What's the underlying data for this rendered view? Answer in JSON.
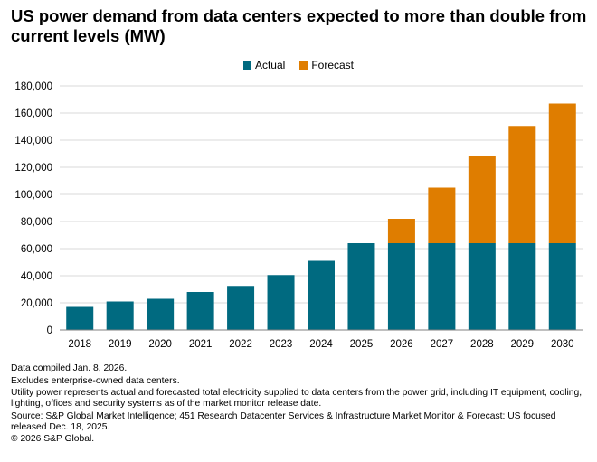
{
  "title": "US power demand from data centers expected to more than double from current levels (MW)",
  "colors": {
    "actual": "#006a80",
    "forecast": "#df7d00",
    "axis": "#808080",
    "grid": "#d9d9d9"
  },
  "notes": [
    "Data compiled Jan. 8, 2026.",
    "Excludes enterprise-owned data centers.",
    "Utility power represents actual and forecasted total electricity supplied to data centers from the power grid, including IT equipment, cooling, lighting, offices and security systems as of the market monitor release date.",
    "Source: S&P Global Market Intelligence; 451 Research Datacenter Services & Infrastructure Market Monitor & Forecast: US focused released Dec. 18, 2025.",
    "© 2026 S&P Global."
  ],
  "chart_data": {
    "type": "bar",
    "stacked": true,
    "categories": [
      "2018",
      "2019",
      "2020",
      "2021",
      "2022",
      "2023",
      "2024",
      "2025",
      "2026",
      "2027",
      "2028",
      "2029",
      "2030"
    ],
    "series": [
      {
        "name": "Actual",
        "values": [
          17000,
          21000,
          23000,
          28000,
          32500,
          40500,
          51000,
          64000,
          64000,
          64000,
          64000,
          64000,
          64000
        ]
      },
      {
        "name": "Forecast",
        "values": [
          0,
          0,
          0,
          0,
          0,
          0,
          0,
          0,
          18000,
          41000,
          64000,
          86500,
          103000
        ]
      }
    ],
    "ylim": [
      0,
      180000
    ],
    "yticks": [
      "0",
      "20,000",
      "40,000",
      "60,000",
      "80,000",
      "100,000",
      "120,000",
      "140,000",
      "160,000",
      "180,000"
    ],
    "legend_position": "top-center",
    "grid": true
  }
}
